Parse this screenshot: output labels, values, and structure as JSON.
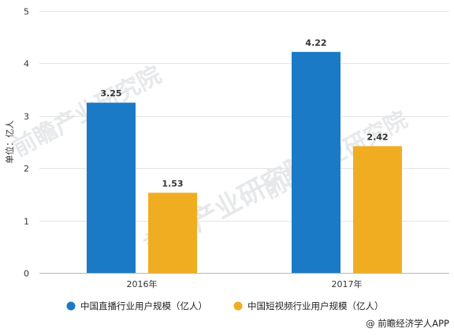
{
  "chart_data": {
    "type": "bar",
    "categories": [
      "2016年",
      "2017年"
    ],
    "series": [
      {
        "name": "中国直播行业用户规模（亿人）",
        "values": [
          3.25,
          4.22
        ],
        "color": "#1a7ac6"
      },
      {
        "name": "中国短视频行业用户规模（亿人）",
        "values": [
          1.53,
          2.42
        ],
        "color": "#f0ad22"
      }
    ],
    "ylabel": "单位：亿人",
    "ylim": [
      0,
      5
    ],
    "yticks": [
      0,
      1,
      2,
      3,
      4,
      5
    ],
    "grid": true,
    "legend_position": "bottom"
  },
  "credit": "@ 前瞻经济学人APP",
  "watermark": "前瞻产业研究院"
}
